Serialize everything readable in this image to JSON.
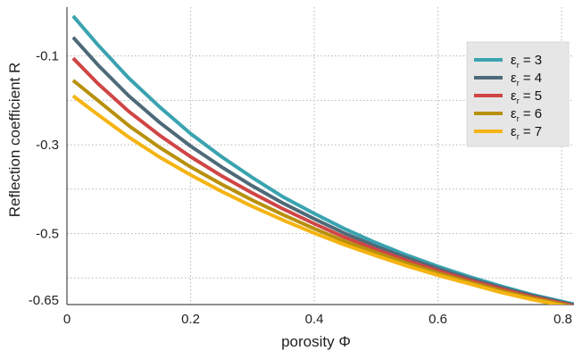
{
  "chart_data": {
    "type": "line",
    "title": "",
    "xlabel": "porosity Φ",
    "ylabel": "Reflection coefficient R",
    "xlim": [
      0,
      0.82
    ],
    "ylim": [
      -0.66,
      0.01
    ],
    "xticks": [
      0,
      0.2,
      0.4,
      0.6,
      0.8
    ],
    "xtick_labels": [
      "0",
      "0.2",
      "0.4",
      "0.6",
      "0.8"
    ],
    "yticks": [
      -0.1,
      -0.3,
      -0.5,
      -0.65
    ],
    "ytick_labels": [
      "-0.1",
      "-0.3",
      "-0.5",
      "-0.65"
    ],
    "ygrid": [
      -0.1,
      -0.2,
      -0.3,
      -0.4,
      -0.5,
      -0.6
    ],
    "grid": true,
    "legend_position": "top-right",
    "x": [
      0.01,
      0.05,
      0.1,
      0.15,
      0.2,
      0.25,
      0.3,
      0.35,
      0.4,
      0.45,
      0.5,
      0.55,
      0.6,
      0.65,
      0.7,
      0.75,
      0.8,
      0.82
    ],
    "series": [
      {
        "symbol": "ε",
        "subscript": "r",
        "value_label": " = 3",
        "color": "#3aa3b0",
        "values": [
          -0.01,
          -0.075,
          -0.15,
          -0.215,
          -0.275,
          -0.327,
          -0.374,
          -0.418,
          -0.455,
          -0.49,
          -0.521,
          -0.549,
          -0.574,
          -0.597,
          -0.618,
          -0.637,
          -0.653,
          -0.659
        ]
      },
      {
        "symbol": "ε",
        "subscript": "r",
        "value_label": " = 4",
        "color": "#4e6a78",
        "values": [
          -0.058,
          -0.12,
          -0.19,
          -0.25,
          -0.303,
          -0.35,
          -0.393,
          -0.432,
          -0.467,
          -0.5,
          -0.529,
          -0.555,
          -0.579,
          -0.601,
          -0.621,
          -0.639,
          -0.655,
          -0.661
        ]
      },
      {
        "symbol": "ε",
        "subscript": "r",
        "value_label": " = 5",
        "color": "#d04545",
        "values": [
          -0.105,
          -0.162,
          -0.225,
          -0.279,
          -0.327,
          -0.37,
          -0.409,
          -0.445,
          -0.478,
          -0.509,
          -0.536,
          -0.561,
          -0.584,
          -0.605,
          -0.624,
          -0.642,
          -0.657,
          -0.663
        ]
      },
      {
        "symbol": "ε",
        "subscript": "r",
        "value_label": " = 6",
        "color": "#b8900c",
        "values": [
          -0.155,
          -0.2,
          -0.257,
          -0.306,
          -0.35,
          -0.389,
          -0.425,
          -0.458,
          -0.489,
          -0.518,
          -0.543,
          -0.567,
          -0.589,
          -0.609,
          -0.628,
          -0.645,
          -0.659,
          -0.665
        ]
      },
      {
        "symbol": "ε",
        "subscript": "r",
        "value_label": " = 7",
        "color": "#f5b412",
        "values": [
          -0.19,
          -0.232,
          -0.283,
          -0.328,
          -0.368,
          -0.405,
          -0.439,
          -0.47,
          -0.499,
          -0.526,
          -0.55,
          -0.573,
          -0.594,
          -0.613,
          -0.632,
          -0.648,
          -0.662,
          -0.668
        ]
      }
    ]
  }
}
